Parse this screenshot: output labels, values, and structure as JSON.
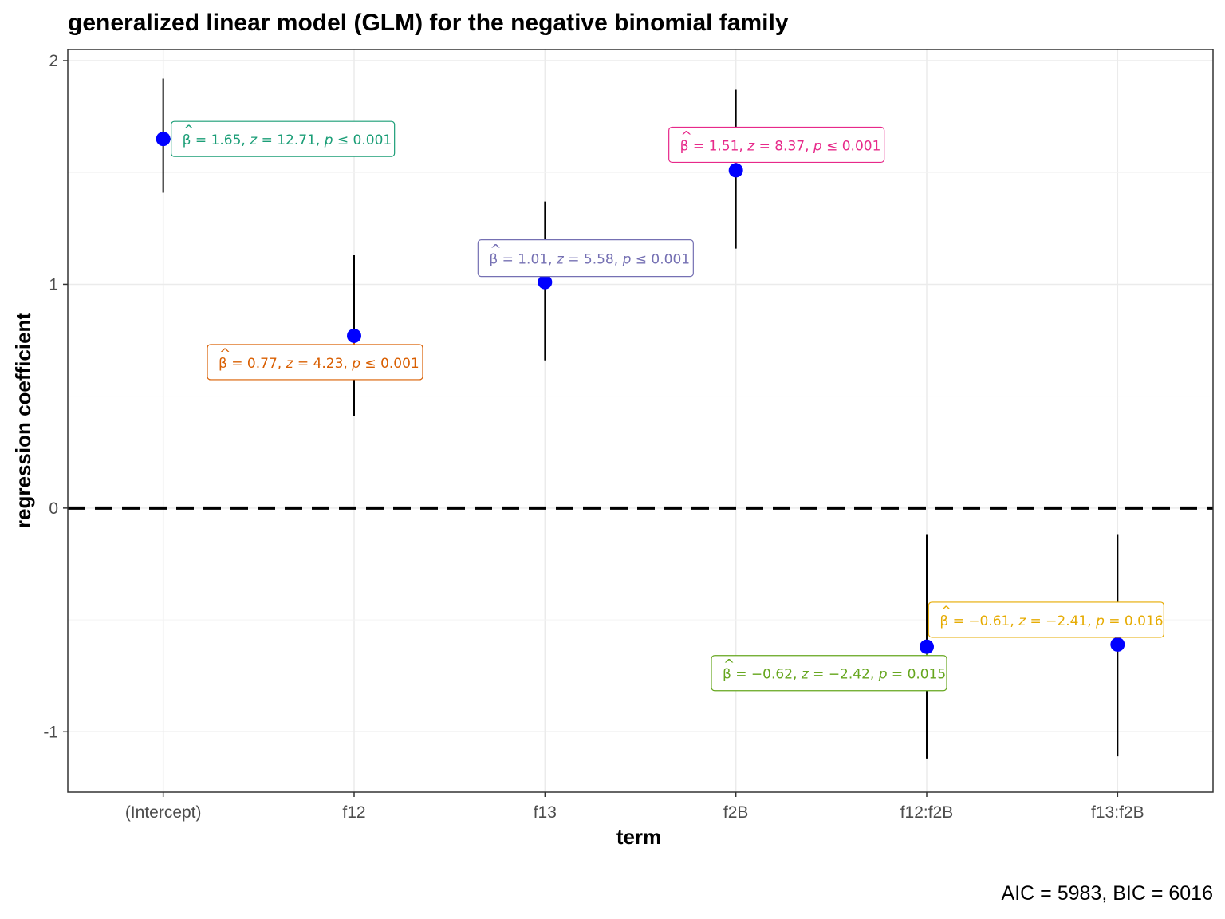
{
  "chart_data": {
    "type": "scatter",
    "title": "generalized linear model (GLM) for the negative binomial family",
    "xlabel": "term",
    "ylabel": "regression coefficient",
    "caption": "AIC = 5983, BIC = 6016",
    "categories": [
      "(Intercept)",
      "f12",
      "f13",
      "f2B",
      "f12:f2B",
      "f13:f2B"
    ],
    "ylim": [
      -1.27,
      2.05
    ],
    "yticks": [
      "-1",
      "0",
      "1",
      "2"
    ],
    "ytick_values": [
      -1,
      0,
      1,
      2
    ],
    "reference_line": 0,
    "grid": true,
    "point_color": "#0000ff",
    "points": [
      {
        "term": "(Intercept)",
        "estimate": 1.65,
        "ci_low": 1.41,
        "ci_high": 1.92,
        "label_color": "#1b9e77",
        "label": {
          "beta": "1.65",
          "z": "12.71",
          "p_op": "≤",
          "p": "0.001"
        }
      },
      {
        "term": "f12",
        "estimate": 0.77,
        "ci_low": 0.41,
        "ci_high": 1.13,
        "label_color": "#d95f02",
        "label": {
          "beta": "0.77",
          "z": "4.23",
          "p_op": "≤",
          "p": "0.001"
        }
      },
      {
        "term": "f13",
        "estimate": 1.01,
        "ci_low": 0.66,
        "ci_high": 1.37,
        "label_color": "#7570b3",
        "label": {
          "beta": "1.01",
          "z": "5.58",
          "p_op": "≤",
          "p": "0.001"
        }
      },
      {
        "term": "f2B",
        "estimate": 1.51,
        "ci_low": 1.16,
        "ci_high": 1.87,
        "label_color": "#e7298a",
        "label": {
          "beta": "1.51",
          "z": "8.37",
          "p_op": "≤",
          "p": "0.001"
        }
      },
      {
        "term": "f12:f2B",
        "estimate": -0.62,
        "ci_low": -1.12,
        "ci_high": -0.12,
        "label_color": "#66a61e",
        "label": {
          "beta": "−0.62",
          "z": "−2.42",
          "p_op": "=",
          "p": "0.015"
        }
      },
      {
        "term": "f13:f2B",
        "estimate": -0.61,
        "ci_low": -1.11,
        "ci_high": -0.12,
        "label_color": "#e6ab02",
        "label": {
          "beta": "−0.61",
          "z": "−2.41",
          "p_op": "=",
          "p": "0.016"
        }
      }
    ]
  }
}
